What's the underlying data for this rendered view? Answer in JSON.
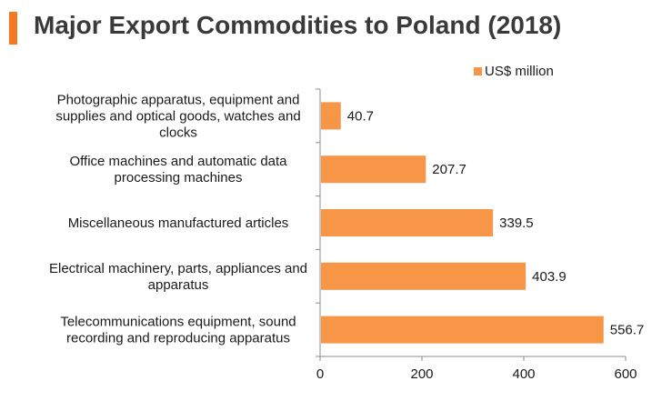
{
  "header": {
    "title": "Major Export Commodities to Poland (2018)",
    "accent_color": "#f47920"
  },
  "chart_data": {
    "type": "bar",
    "orientation": "horizontal",
    "title": "Major Export Commodities to Poland (2018)",
    "categories": [
      [
        "Photographic apparatus, equipment and",
        "supplies and optical goods, watches and",
        "clocks"
      ],
      [
        "Office machines and automatic data",
        "processing machines"
      ],
      [
        "Miscellaneous manufactured articles"
      ],
      [
        "Electrical machinery, parts, appliances and",
        "apparatus"
      ],
      [
        "Telecommunications equipment, sound",
        "recording and reproducing apparatus"
      ]
    ],
    "series": [
      {
        "name": "US$ million",
        "color": "#f79646",
        "values": [
          40.7,
          207.7,
          339.5,
          403.9,
          556.7
        ],
        "labels": [
          "40.7",
          "207.7",
          "339.5",
          "403.9",
          "556.7"
        ]
      }
    ],
    "xlim": [
      0,
      600
    ],
    "xticks": [
      0,
      200,
      400,
      600
    ],
    "xtick_labels": [
      "0",
      "200",
      "400",
      "600"
    ],
    "grid": false,
    "legend_position": "top-right"
  }
}
